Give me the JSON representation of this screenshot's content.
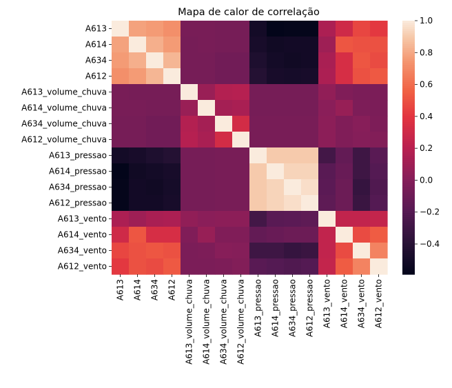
{
  "chart_data": {
    "type": "heatmap",
    "title": "Mapa de calor de correlação",
    "row_labels": [
      "A613",
      "A614",
      "A634",
      "A612",
      "A613_volume_chuva",
      "A614_volume_chuva",
      "A634_volume_chuva",
      "A612_volume_chuva",
      "A613_pressao",
      "A614_pressao",
      "A634_pressao",
      "A612_pressao",
      "A613_vento",
      "A614_vento",
      "A634_vento",
      "A612_vento"
    ],
    "col_labels": [
      "A613",
      "A614",
      "A634",
      "A612",
      "A613_volume_chuva",
      "A614_volume_chuva",
      "A634_volume_chuva",
      "A612_volume_chuva",
      "A613_pressao",
      "A614_pressao",
      "A634_pressao",
      "A612_pressao",
      "A613_vento",
      "A614_vento",
      "A634_vento",
      "A612_vento"
    ],
    "values": [
      [
        1.0,
        0.78,
        0.76,
        0.72,
        -0.05,
        -0.05,
        -0.06,
        -0.06,
        -0.5,
        -0.59,
        -0.58,
        -0.58,
        0.15,
        0.3,
        0.46,
        0.41
      ],
      [
        0.78,
        1.0,
        0.82,
        0.76,
        -0.06,
        -0.05,
        -0.06,
        -0.06,
        -0.48,
        -0.52,
        -0.51,
        -0.51,
        0.1,
        0.52,
        0.5,
        0.5
      ],
      [
        0.76,
        0.82,
        1.0,
        0.84,
        -0.06,
        -0.06,
        -0.08,
        -0.08,
        -0.45,
        -0.5,
        -0.52,
        -0.51,
        0.14,
        0.34,
        0.52,
        0.48
      ],
      [
        0.72,
        0.76,
        0.84,
        1.0,
        -0.06,
        -0.06,
        -0.08,
        -0.08,
        -0.42,
        -0.48,
        -0.49,
        -0.48,
        0.15,
        0.34,
        0.5,
        0.53
      ],
      [
        -0.05,
        -0.06,
        -0.06,
        -0.06,
        1.0,
        0.08,
        0.18,
        0.19,
        -0.06,
        -0.06,
        -0.06,
        -0.06,
        0.05,
        -0.02,
        -0.04,
        -0.04
      ],
      [
        -0.05,
        -0.05,
        -0.06,
        -0.06,
        0.08,
        1.0,
        0.12,
        0.14,
        -0.06,
        -0.06,
        -0.06,
        -0.06,
        0.02,
        0.07,
        -0.03,
        -0.04
      ],
      [
        -0.06,
        -0.06,
        -0.08,
        -0.08,
        0.18,
        0.12,
        1.0,
        0.32,
        -0.05,
        -0.05,
        -0.05,
        -0.05,
        0.03,
        -0.02,
        0.01,
        -0.03
      ],
      [
        -0.06,
        -0.06,
        -0.08,
        -0.08,
        0.19,
        0.14,
        0.32,
        1.0,
        -0.05,
        -0.05,
        -0.05,
        -0.05,
        0.03,
        -0.02,
        0.0,
        -0.01
      ],
      [
        -0.5,
        -0.48,
        -0.45,
        -0.42,
        -0.06,
        -0.06,
        -0.05,
        -0.05,
        1.0,
        0.9,
        0.9,
        0.9,
        -0.28,
        -0.14,
        -0.3,
        -0.18
      ],
      [
        -0.59,
        -0.52,
        -0.5,
        -0.48,
        -0.06,
        -0.06,
        -0.05,
        -0.05,
        0.9,
        1.0,
        0.93,
        0.93,
        -0.18,
        -0.12,
        -0.3,
        -0.2
      ],
      [
        -0.58,
        -0.51,
        -0.52,
        -0.49,
        -0.06,
        -0.06,
        -0.05,
        -0.05,
        0.9,
        0.93,
        1.0,
        0.96,
        -0.17,
        -0.1,
        -0.34,
        -0.22
      ],
      [
        -0.58,
        -0.51,
        -0.51,
        -0.48,
        -0.06,
        -0.06,
        -0.05,
        -0.05,
        0.9,
        0.93,
        0.96,
        1.0,
        -0.16,
        -0.1,
        -0.32,
        -0.2
      ],
      [
        0.15,
        0.1,
        0.14,
        0.15,
        0.05,
        0.02,
        0.03,
        0.03,
        -0.28,
        -0.18,
        -0.17,
        -0.16,
        1.0,
        0.24,
        0.24,
        0.25
      ],
      [
        0.3,
        0.52,
        0.34,
        0.34,
        -0.02,
        0.07,
        -0.02,
        -0.02,
        -0.14,
        -0.12,
        -0.1,
        -0.1,
        0.24,
        1.0,
        0.48,
        0.54
      ],
      [
        0.46,
        0.5,
        0.52,
        0.5,
        -0.04,
        -0.03,
        0.01,
        0.0,
        -0.3,
        -0.3,
        -0.34,
        -0.32,
        0.24,
        0.48,
        1.0,
        0.68
      ],
      [
        0.41,
        0.5,
        0.48,
        0.53,
        -0.04,
        -0.04,
        -0.03,
        -0.01,
        -0.18,
        -0.2,
        -0.22,
        -0.2,
        0.25,
        0.54,
        0.68,
        1.0
      ]
    ],
    "vmin": -0.59,
    "vmax": 1.0,
    "colorbar_ticks": [
      "1.0",
      "0.8",
      "0.6",
      "0.4",
      "0.2",
      "0.0",
      "−0.2",
      "−0.4"
    ],
    "colorbar_tick_values": [
      1.0,
      0.8,
      0.6,
      0.4,
      0.2,
      0.0,
      -0.2,
      -0.4
    ],
    "colormap": "rocket",
    "grid": false
  }
}
